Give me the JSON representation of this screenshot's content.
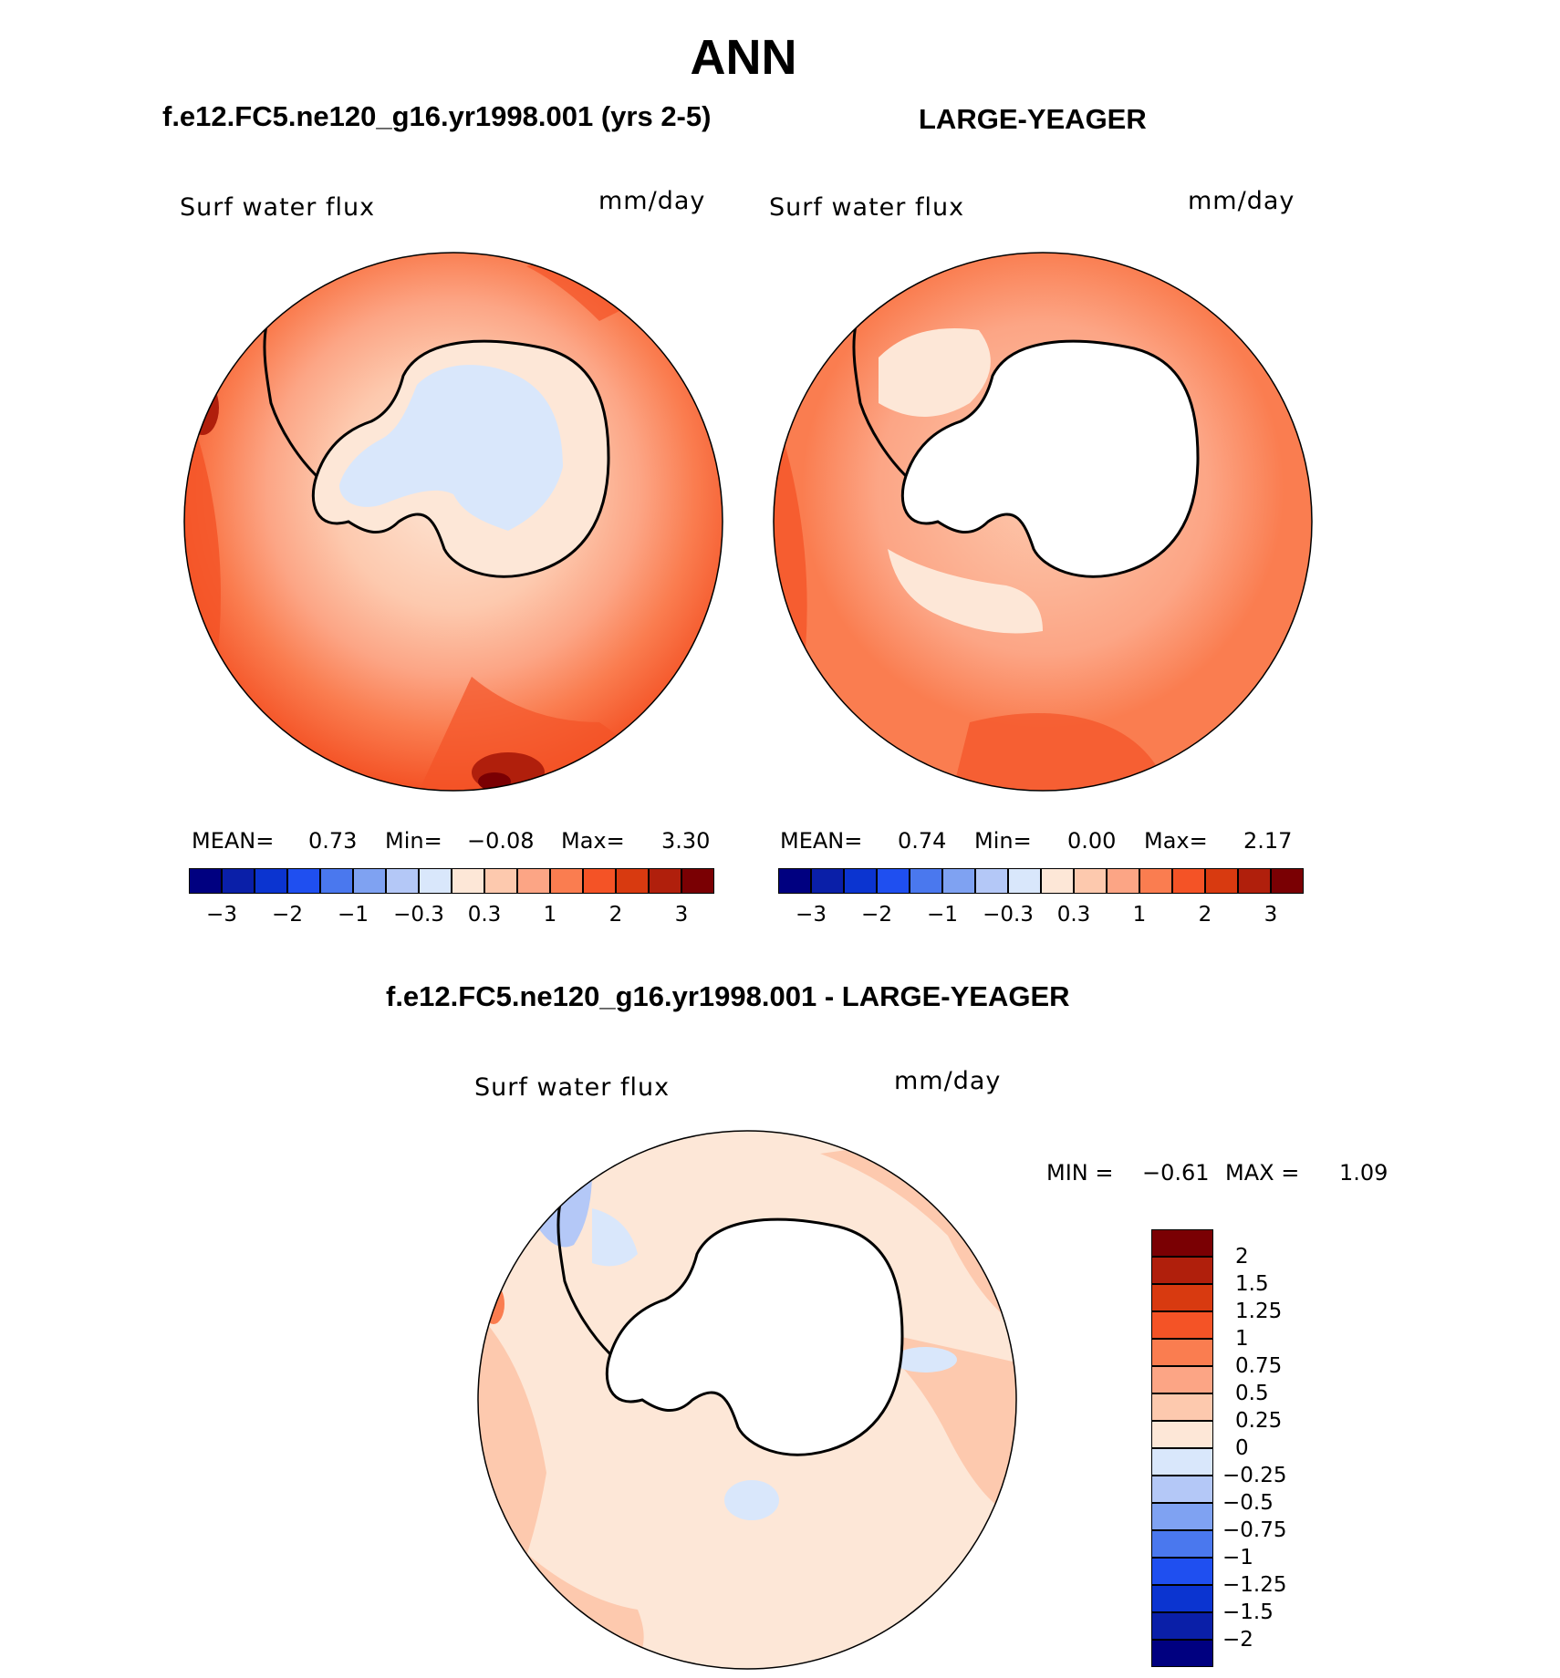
{
  "figure": {
    "title": "ANN",
    "panels": [
      {
        "id": "model",
        "title": "f.e12.FC5.ne120_g16.yr1998.001 (yrs 2-5)",
        "variable_label": "Surf water flux",
        "units_label": "mm/day",
        "stats": {
          "mean_label": "MEAN=",
          "mean": "0.73",
          "min_label": "Min=",
          "min": "−0.08",
          "max_label": "Max=",
          "max": "3.30"
        }
      },
      {
        "id": "obs",
        "title": "LARGE-YEAGER",
        "variable_label": "Surf water flux",
        "units_label": "mm/day",
        "stats": {
          "mean_label": "MEAN=",
          "mean": "0.74",
          "min_label": "Min=",
          "min": "0.00",
          "max_label": "Max=",
          "max": "2.17"
        }
      },
      {
        "id": "diff",
        "title": "f.e12.FC5.ne120_g16.yr1998.001 - LARGE-YEAGER",
        "variable_label": "Surf water flux",
        "units_label": "mm/day",
        "stats": {
          "min_label": "MIN =",
          "min": "−0.61",
          "max_label": "MAX =",
          "max": "1.09"
        }
      }
    ],
    "colorbar_main": {
      "colors": [
        "#000080",
        "#0a1fa8",
        "#0b34d0",
        "#1f4ff0",
        "#4a78ee",
        "#7fa2f2",
        "#b4c8f7",
        "#d9e7fb",
        "#fde7d7",
        "#fdc9ae",
        "#fca585",
        "#fa7d50",
        "#f45326",
        "#d83a10",
        "#b01f0c",
        "#7a0003"
      ],
      "tick_labels": [
        "−3",
        "−2",
        "−1",
        "−0.3",
        "0.3",
        "1",
        "2",
        "3"
      ]
    },
    "colorbar_diff": {
      "colors": [
        "#000080",
        "#0a1fa8",
        "#0b34d0",
        "#1f4ff0",
        "#4a78ee",
        "#7fa2f2",
        "#b4c8f7",
        "#d9e7fb",
        "#fde7d7",
        "#fdc9ae",
        "#fca585",
        "#fa7d50",
        "#f45326",
        "#d83a10",
        "#b01f0c",
        "#7a0003"
      ],
      "tick_labels": [
        "2",
        "1.5",
        "1.25",
        "1",
        "0.75",
        "0.5",
        "0.25",
        "0",
        "−0.25",
        "−0.5",
        "−0.75",
        "−1",
        "−1.25",
        "−1.5",
        "−2"
      ]
    }
  }
}
